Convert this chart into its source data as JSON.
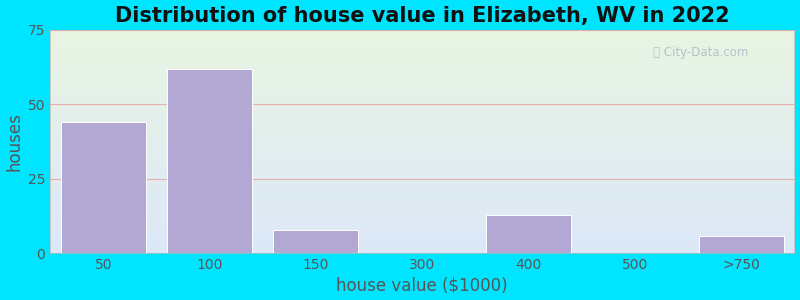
{
  "title": "Distribution of house value in Elizabeth, WV in 2022",
  "xlabel": "house value ($1000)",
  "ylabel": "houses",
  "bar_labels": [
    "50",
    "100",
    "150",
    "300",
    "400",
    "500",
    ">750"
  ],
  "bar_heights": [
    44,
    62,
    8,
    0,
    13,
    0,
    6
  ],
  "bar_color": "#b3a8d4",
  "bar_edgecolor": "#ffffff",
  "ylim": [
    0,
    75
  ],
  "yticks": [
    0,
    25,
    50,
    75
  ],
  "background_outer": "#00e5ff",
  "background_inner_top": "#e8f5e2",
  "background_inner_bottom": "#dde8f8",
  "grid_color": "#e8a0a0",
  "title_fontsize": 15,
  "axis_label_fontsize": 12,
  "tick_fontsize": 10
}
